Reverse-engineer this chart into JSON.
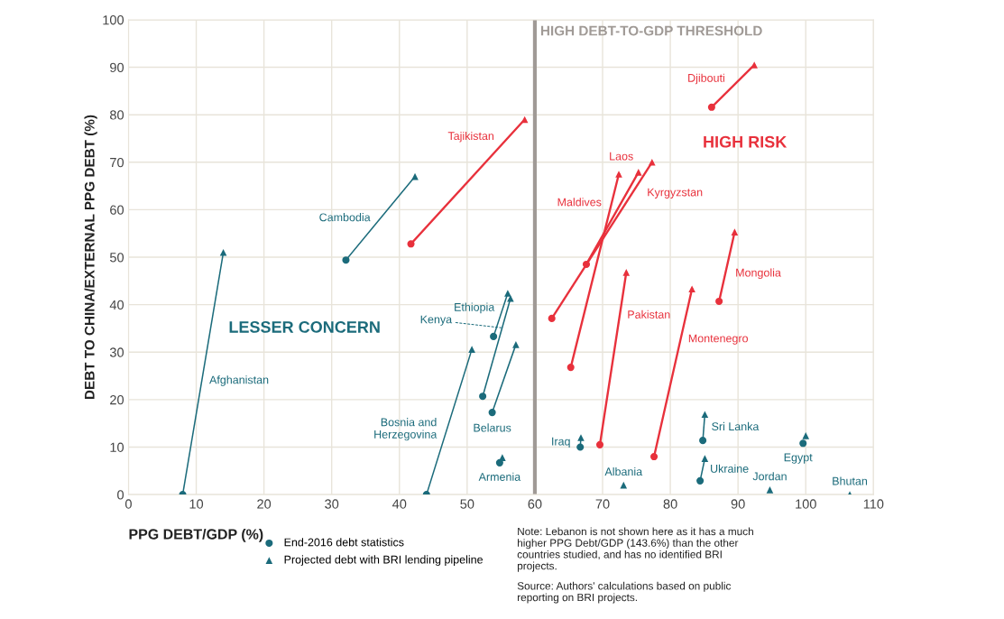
{
  "chart_data": {
    "type": "line",
    "xlabel": "PPG DEBT/GDP (%)",
    "ylabel": "DEBT TO CHINA/EXTERNAL PPG DEBT (%)",
    "xlim": [
      0,
      110
    ],
    "xticks": [
      0,
      10,
      20,
      30,
      40,
      50,
      60,
      70,
      80,
      90,
      100,
      110
    ],
    "ylim": [
      0,
      100
    ],
    "yticks": [
      0,
      10,
      20,
      30,
      40,
      50,
      60,
      70,
      80,
      90,
      100
    ],
    "grid": true,
    "legend": "bottom left",
    "marker": "none",
    "line_style": "solid",
    "ref_lines": [
      {
        "axis": "x",
        "value": 60,
        "label": "HIGH DEBT-TO-GDP THRESHOLD",
        "color": "#a09a96"
      }
    ],
    "annotations": [
      "LESSER CONCERN",
      "HIGH RISK",
      "Note: Lebanon is not shown here as it has a much higher PPG Debt/GDP (143.6%) than the other countries studied, and has no identified BRI projects.",
      "Source: Authors' calculations based on public reporting on BRI projects.",
      {
        "text": "Albania",
        "x": 73.1,
        "y": 2
      },
      {
        "text": "Jordan",
        "x": 94.7,
        "y": 1
      },
      {
        "text": "Bhutan",
        "x": 106.5,
        "y": 0
      },
      {
        "text": "Armenia",
        "x": 54.8,
        "y": 6.7
      },
      {
        "text": "Egypt",
        "x": 99.6,
        "y": 10.8
      }
    ],
    "series": [
      {
        "name": "Afghanistan",
        "color": "#1b6b7b",
        "x": [
          8,
          14
        ],
        "values": [
          0,
          51
        ]
      },
      {
        "name": "Cambodia",
        "color": "#1b6b7b",
        "x": [
          32.1,
          42.3
        ],
        "values": [
          49.4,
          67
        ]
      },
      {
        "name": "Tajikistan",
        "color": "#e8313c",
        "x": [
          41.7,
          58.5
        ],
        "values": [
          52.8,
          79
        ]
      },
      {
        "name": "Djibouti",
        "color": "#e8313c",
        "x": [
          86.1,
          92.4
        ],
        "values": [
          81.6,
          90.5
        ]
      },
      {
        "name": "Laos",
        "color": "#e8313c",
        "x": [
          67.6,
          75.3
        ],
        "values": [
          48.5,
          67.9
        ]
      },
      {
        "name": "Kyrgyzstan",
        "color": "#e8313c",
        "x": [
          62.5,
          77.3
        ],
        "values": [
          37.1,
          70
        ]
      },
      {
        "name": "Maldives",
        "color": "#e8313c",
        "x": [
          65.3,
          72.4
        ],
        "values": [
          26.8,
          67.5
        ]
      },
      {
        "name": "Pakistan",
        "color": "#e8313c",
        "x": [
          69.6,
          73.5
        ],
        "values": [
          10.5,
          46.8
        ]
      },
      {
        "name": "Montenegro",
        "color": "#e8313c",
        "x": [
          77.6,
          83.2
        ],
        "values": [
          8,
          43.3
        ]
      },
      {
        "name": "Mongolia",
        "color": "#e8313c",
        "x": [
          87.2,
          89.5
        ],
        "values": [
          40.7,
          55.3
        ]
      },
      {
        "name": "Ethiopia",
        "color": "#1b6b7b",
        "x": [
          53.9,
          56
        ],
        "values": [
          33.3,
          42.4
        ]
      },
      {
        "name": "Kenya",
        "color": "#1b6b7b",
        "x": [
          52.3,
          56.4
        ],
        "values": [
          20.7,
          41.3
        ]
      },
      {
        "name": "Belarus",
        "color": "#1b6b7b",
        "x": [
          53.7,
          57.2
        ],
        "values": [
          17.3,
          31.6
        ]
      },
      {
        "name": "Bosnia and\nHerzegovina",
        "color": "#1b6b7b",
        "x": [
          44,
          50.7
        ],
        "values": [
          0,
          30.6
        ]
      },
      {
        "name": "Iraq",
        "color": "#1b6b7b",
        "x": [
          66.7,
          66.8
        ],
        "values": [
          10,
          12
        ]
      },
      {
        "name": "Sri Lanka",
        "color": "#1b6b7b",
        "x": [
          84.8,
          85.1
        ],
        "values": [
          11.4,
          16.9
        ]
      },
      {
        "name": "Ukraine",
        "color": "#1b6b7b",
        "x": [
          84.4,
          85.1
        ],
        "values": [
          2.9,
          7.6
        ]
      },
      {
        "name": "End-2016 debt statistics",
        "type": "scatter",
        "marker": "circle",
        "x": [
          8,
          32.1,
          41.7,
          86.1,
          67.6,
          62.5,
          65.3,
          69.6,
          77.6,
          87.2,
          53.9,
          52.3,
          53.7,
          44,
          54.8,
          66.7,
          84.8,
          84.4,
          99.6
        ],
        "values": [
          0,
          49.4,
          52.8,
          81.6,
          48.5,
          37.1,
          26.8,
          10.5,
          8,
          40.7,
          33.3,
          20.7,
          17.3,
          0,
          6.7,
          10,
          11.4,
          2.9,
          10.8
        ],
        "colors": [
          "#1b6b7b",
          "#1b6b7b",
          "#e8313c",
          "#e8313c",
          "#e8313c",
          "#e8313c",
          "#e8313c",
          "#e8313c",
          "#e8313c",
          "#e8313c",
          "#1b6b7b",
          "#1b6b7b",
          "#1b6b7b",
          "#1b6b7b",
          "#1b6b7b",
          "#1b6b7b",
          "#1b6b7b",
          "#1b6b7b",
          "#1b6b7b"
        ]
      },
      {
        "name": "Projected debt with BRI lending pipeline",
        "type": "scatter",
        "marker": "triangle",
        "x": [
          14,
          42.3,
          58.5,
          92.4,
          75.3,
          77.3,
          72.4,
          73.5,
          83.2,
          89.5,
          56,
          56.4,
          57.2,
          50.7,
          55.2,
          66.8,
          85.1,
          85.1,
          100,
          73.1,
          94.7,
          106.5
        ],
        "values": [
          51,
          67,
          79,
          90.5,
          67.9,
          70,
          67.5,
          46.8,
          43.3,
          55.3,
          42.4,
          41.3,
          31.6,
          30.6,
          7.8,
          12,
          16.9,
          7.6,
          12.4,
          2,
          1,
          0
        ],
        "colors": [
          "#1b6b7b",
          "#1b6b7b",
          "#e8313c",
          "#e8313c",
          "#e8313c",
          "#e8313c",
          "#e8313c",
          "#e8313c",
          "#e8313c",
          "#e8313c",
          "#1b6b7b",
          "#1b6b7b",
          "#1b6b7b",
          "#1b6b7b",
          "#1b6b7b",
          "#1b6b7b",
          "#1b6b7b",
          "#1b6b7b",
          "#1b6b7b",
          "#1b6b7b",
          "#1b6b7b",
          "#1b6b7b"
        ]
      }
    ]
  }
}
